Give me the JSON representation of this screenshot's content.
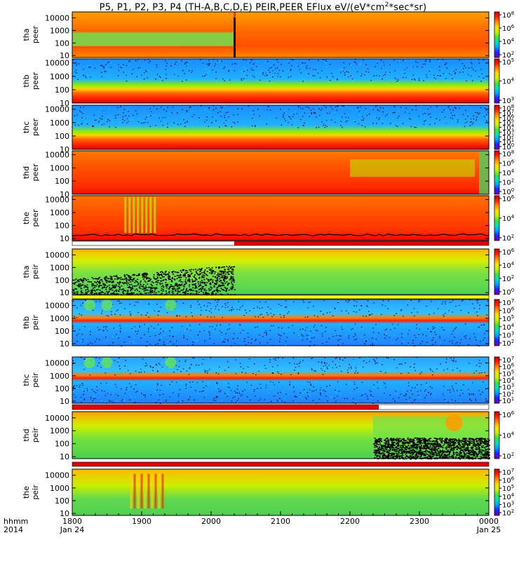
{
  "title": {
    "prefix": "P5, P1, P2, P3, P4 (TH-A,B,C,D,E) PEIR,PEER EFlux eV/(eV*cm",
    "sup": "2",
    "suffix": "*sec*sr)"
  },
  "colors": {
    "frame": "#000000",
    "colormap": [
      "#7a00a6",
      "#2020ff",
      "#00a0ff",
      "#00e0c0",
      "#40e040",
      "#c8f000",
      "#ffe000",
      "#ff9000",
      "#ff2000",
      "#c80000"
    ]
  },
  "chart_data": {
    "type": "heatmap",
    "description_type": "spectrogram",
    "time_axis": {
      "row1_label": "hhmm",
      "row2_label": "2014",
      "ticks": [
        "1800",
        "1900",
        "2000",
        "2100",
        "2200",
        "2300",
        "0000"
      ],
      "date_labels": [
        {
          "tick": "1800",
          "text": "Jan 24"
        },
        {
          "tick": "0000",
          "text": "Jan 25"
        }
      ],
      "range": [
        "2014-01-24 18:00",
        "2014-01-25 00:00"
      ]
    },
    "energy_axis": {
      "scale": "log",
      "unit": "eV"
    },
    "panels": [
      {
        "id": "tha-peer",
        "ylabel": [
          "tha",
          "peer"
        ],
        "yticks": [
          "10",
          "100",
          "1000",
          "10000"
        ],
        "yrange": [
          7,
          30000
        ],
        "cbar": [
          {
            "base": "10",
            "exp": "8"
          },
          {
            "base": "10",
            "exp": "6"
          },
          {
            "base": "10",
            "exp": "4"
          },
          {
            "base": "10",
            "exp": "2"
          }
        ],
        "features": [
          "black gap at ~2020",
          "low-energy green before 2020, orange after"
        ]
      },
      {
        "id": "thb-peer",
        "ylabel": [
          "thb",
          "peer"
        ],
        "yticks": [
          "10",
          "100",
          "1000",
          "10000"
        ],
        "yrange": [
          10,
          20000
        ],
        "cbar": [
          {
            "base": "10",
            "exp": "5"
          },
          {
            "base": "10",
            "exp": "4"
          },
          {
            "base": "10",
            "exp": "3"
          }
        ],
        "features": [
          "noisy blue above 1000 eV",
          "red band below 100 eV"
        ]
      },
      {
        "id": "thc-peer",
        "ylabel": [
          "thc",
          "peer"
        ],
        "yticks": [
          "10",
          "100",
          "1000",
          "10000"
        ],
        "yrange": [
          10,
          20000
        ],
        "cbar": [
          {
            "base": "10",
            "exp": "8"
          },
          {
            "base": "10",
            "exp": "7"
          },
          {
            "base": "10",
            "exp": "6"
          },
          {
            "base": "10",
            "exp": "5"
          },
          {
            "base": "10",
            "exp": "4"
          },
          {
            "base": "10",
            "exp": "3"
          },
          {
            "base": "10",
            "exp": "2"
          },
          {
            "base": "10",
            "exp": "1"
          },
          {
            "base": "10",
            "exp": "0"
          }
        ],
        "features": [
          "noisy blue above 1000 eV",
          "red band below 100 eV"
        ]
      },
      {
        "id": "thd-peer",
        "ylabel": [
          "thd",
          "peer"
        ],
        "yticks": [
          "10",
          "100",
          "1000",
          "10000"
        ],
        "yrange": [
          10,
          20000
        ],
        "cbar": [
          {
            "base": "10",
            "exp": "8"
          },
          {
            "base": "10",
            "exp": "6"
          },
          {
            "base": "10",
            "exp": "4"
          },
          {
            "base": "10",
            "exp": "2"
          },
          {
            "base": "10",
            "exp": "0"
          }
        ],
        "features": [
          "red/orange flux fading to green after 2200"
        ]
      },
      {
        "id": "the-peer",
        "ylabel": [
          "the",
          "peer"
        ],
        "yticks": [
          "10",
          "100",
          "1000",
          "10000"
        ],
        "yrange": [
          7,
          20000
        ],
        "cbar": [
          {
            "base": "10",
            "exp": "6"
          },
          {
            "base": "10",
            "exp": "4"
          },
          {
            "base": "10",
            "exp": "2"
          }
        ],
        "features": [
          "green bursts near 1850-1930",
          "black spacecraft potential line near 10 eV"
        ]
      },
      {
        "id": "tha-peir",
        "ylabel": [
          "tha",
          "peir"
        ],
        "yticks": [
          "10",
          "100",
          "1000",
          "10000"
        ],
        "yrange": [
          7,
          30000
        ],
        "cbar": [
          {
            "base": "10",
            "exp": "6"
          },
          {
            "base": "10",
            "exp": "4"
          },
          {
            "base": "10",
            "exp": "2"
          },
          {
            "base": "10",
            "exp": "0"
          }
        ],
        "features": [
          "black low-count region before 2020"
        ]
      },
      {
        "id": "thb-peir",
        "ylabel": [
          "thb",
          "peir"
        ],
        "yticks": [
          "10",
          "100",
          "1000",
          "10000"
        ],
        "yrange": [
          7,
          30000
        ],
        "cbar": [
          {
            "base": "10",
            "exp": "7"
          },
          {
            "base": "10",
            "exp": "6"
          },
          {
            "base": "10",
            "exp": "5"
          },
          {
            "base": "10",
            "exp": "4"
          },
          {
            "base": "10",
            "exp": "3"
          },
          {
            "base": "10",
            "exp": "2"
          }
        ],
        "features": [
          "noisy blue with red band near 1000 eV"
        ]
      },
      {
        "id": "thc-peir",
        "ylabel": [
          "thc",
          "peir"
        ],
        "yticks": [
          "10",
          "100",
          "1000",
          "10000"
        ],
        "yrange": [
          7,
          30000
        ],
        "cbar": [
          {
            "base": "10",
            "exp": "7"
          },
          {
            "base": "10",
            "exp": "6"
          },
          {
            "base": "10",
            "exp": "5"
          },
          {
            "base": "10",
            "exp": "4"
          },
          {
            "base": "10",
            "exp": "3"
          },
          {
            "base": "10",
            "exp": "2"
          },
          {
            "base": "10",
            "exp": "1"
          }
        ],
        "features": [
          "noisy blue with red band near 1000 eV"
        ]
      },
      {
        "id": "thd-peir",
        "ylabel": [
          "thd",
          "peir"
        ],
        "yticks": [
          "10",
          "100",
          "1000",
          "10000"
        ],
        "yrange": [
          7,
          30000
        ],
        "cbar": [
          {
            "base": "10",
            "exp": "6"
          },
          {
            "base": "10",
            "exp": "4"
          },
          {
            "base": "10",
            "exp": "2"
          }
        ],
        "features": [
          "black low-count region after 2220",
          "orange hot spot near 2330"
        ]
      },
      {
        "id": "the-peir",
        "ylabel": [
          "the",
          "peir"
        ],
        "yticks": [
          "10",
          "100",
          "1000",
          "10000"
        ],
        "yrange": [
          7,
          30000
        ],
        "cbar": [
          {
            "base": "10",
            "exp": "7"
          },
          {
            "base": "10",
            "exp": "6"
          },
          {
            "base": "10",
            "exp": "5"
          },
          {
            "base": "10",
            "exp": "4"
          },
          {
            "base": "10",
            "exp": "3"
          },
          {
            "base": "10",
            "exp": "2"
          }
        ],
        "features": [
          "yellow/red bursts near 1850-1930"
        ]
      }
    ],
    "mode_bars": [
      {
        "panel": "the-peer",
        "segments": [
          {
            "from": "1800",
            "to": "2020",
            "color": "#ffffff"
          },
          {
            "from": "2020",
            "to": "0000",
            "color": "#e00000"
          }
        ]
      },
      {
        "panel": "tha-peir",
        "segments": [
          {
            "from": "1800",
            "to": "0000",
            "color": "#ffff00"
          }
        ]
      },
      {
        "panel": "thc-peir",
        "segments": [
          {
            "from": "1800",
            "to": "2225",
            "color": "#e00000"
          },
          {
            "from": "2225",
            "to": "0000",
            "color": "#ffffff"
          }
        ]
      },
      {
        "panel": "thd-peir",
        "segments": [
          {
            "from": "1800",
            "to": "0000",
            "color": "#e00000"
          }
        ]
      }
    ]
  }
}
